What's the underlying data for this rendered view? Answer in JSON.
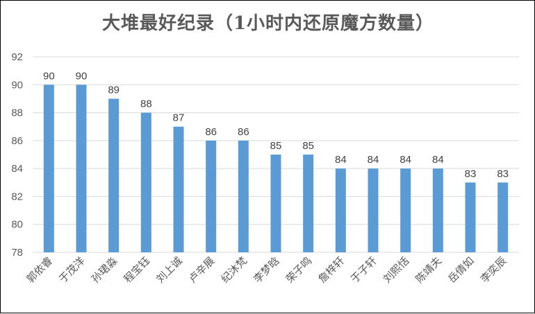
{
  "chart_data": {
    "type": "bar",
    "title": "大堆最好纪录（1小时内还原魔方数量）",
    "categories": [
      "郭依睿",
      "于茂洋",
      "孙珺淼",
      "程宝钰",
      "刘上诚",
      "卢辛展",
      "纪沐梵",
      "李梦晗",
      "荣子鸣",
      "詹梓轩",
      "于子轩",
      "刘熙恬",
      "陈靖夫",
      "岳倩如",
      "李奕辰"
    ],
    "values": [
      90,
      90,
      89,
      88,
      87,
      86,
      86,
      85,
      85,
      84,
      84,
      84,
      84,
      83,
      83
    ],
    "ylim": [
      78,
      92
    ],
    "yticks": [
      78,
      80,
      82,
      84,
      86,
      88,
      90,
      92
    ],
    "xlabel": "",
    "ylabel": "",
    "grid": true,
    "legend": "none",
    "bar_color": "#5B9BD5",
    "grid_color": "#D9D9D9"
  }
}
